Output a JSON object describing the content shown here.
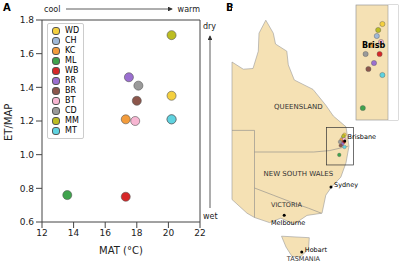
{
  "chart_data": {
    "type": "scatter",
    "panel": "A",
    "x_label": "MAT (°C)",
    "y_label": "ET/MAP",
    "xlim": [
      12,
      22
    ],
    "xticks": [
      12,
      14,
      16,
      18,
      20,
      22
    ],
    "ylim": [
      0.6,
      1.8
    ],
    "yticks": [
      0.6,
      0.8,
      {
        "value": 1,
        "label": "1.0"
      },
      1.2,
      1.4,
      1.6,
      1.8
    ],
    "marker": "circle",
    "legend": "upper left",
    "annotations": {
      "x_low": "cool",
      "x_high": "warm",
      "y_high": "dry",
      "y_low": "wet"
    },
    "series": [
      {
        "name": "WD",
        "color": "#f4d03f",
        "x": [
          20.2
        ],
        "values": [
          1.35
        ]
      },
      {
        "name": "CH",
        "color": "#9fb8d8",
        "x": [
          20.2
        ],
        "values": [
          1.21
        ]
      },
      {
        "name": "KC",
        "color": "#f39c3c",
        "x": [
          17.3
        ],
        "values": [
          1.21
        ]
      },
      {
        "name": "ML",
        "color": "#3fa34d",
        "x": [
          13.6
        ],
        "values": [
          0.76
        ]
      },
      {
        "name": "WB",
        "color": "#d62728",
        "x": [
          17.3
        ],
        "values": [
          0.75
        ]
      },
      {
        "name": "RR",
        "color": "#9b6fd0",
        "x": [
          17.5
        ],
        "values": [
          1.46
        ]
      },
      {
        "name": "BR",
        "color": "#8c564b",
        "x": [
          18.0
        ],
        "values": [
          1.32
        ]
      },
      {
        "name": "BT",
        "color": "#f7b6d2",
        "x": [
          17.9
        ],
        "values": [
          1.2
        ]
      },
      {
        "name": "CD",
        "color": "#9a9a9a",
        "x": [
          18.1
        ],
        "values": [
          1.41
        ]
      },
      {
        "name": "MM",
        "color": "#bcbd22",
        "x": [
          20.2
        ],
        "values": [
          1.71
        ]
      },
      {
        "name": "MT",
        "color": "#5fd3e0",
        "x": [
          20.2
        ],
        "values": [
          1.21
        ]
      }
    ]
  },
  "map": {
    "panel": "B",
    "regions": [
      "QUEENSLAND",
      "NEW SOUTH WALES",
      "VICTORIA",
      "TASMANIA"
    ],
    "cities": [
      "Brisbane",
      "Sydney",
      "Melbourne",
      "Hobart"
    ],
    "inset_labels": [
      "Brisb"
    ]
  }
}
